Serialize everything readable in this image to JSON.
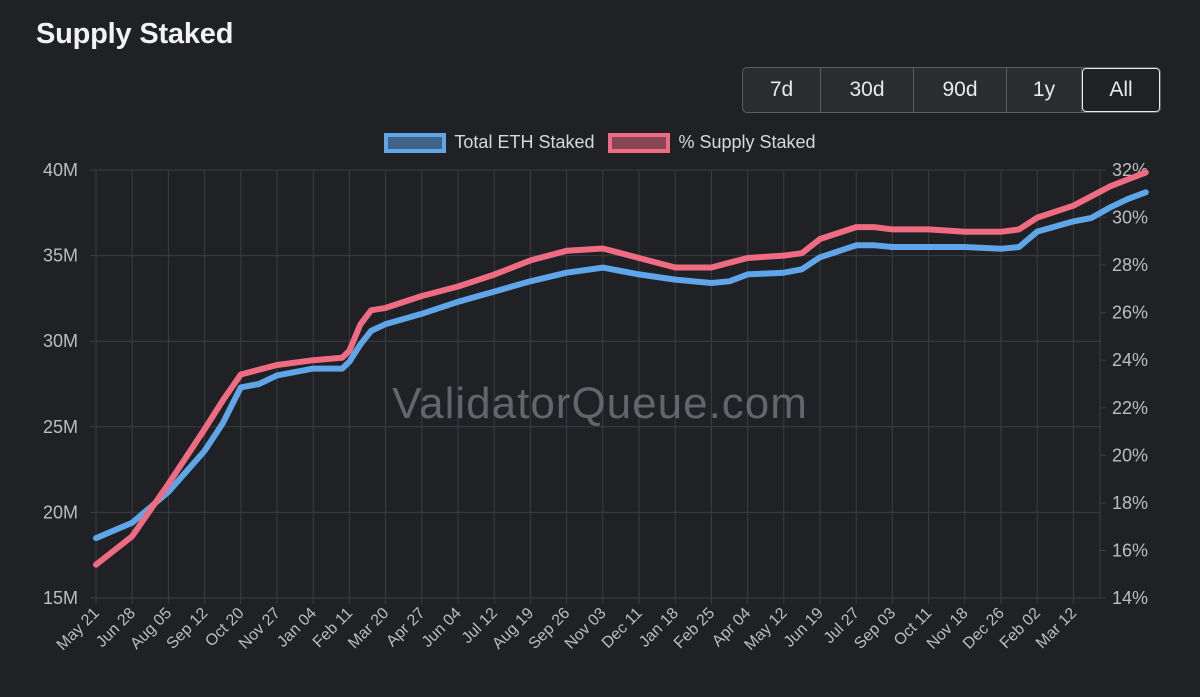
{
  "title": "Supply Staked",
  "ranges": [
    {
      "label": "7d",
      "active": false
    },
    {
      "label": "30d",
      "active": false
    },
    {
      "label": "90d",
      "active": false
    },
    {
      "label": "1y",
      "active": false
    },
    {
      "label": "All",
      "active": true
    }
  ],
  "watermark": "ValidatorQueue.com",
  "colors": {
    "background": "#1f2124",
    "grid": "#3a3d42",
    "series_eth": "#5ea6e8",
    "series_pct": "#ee6b82"
  },
  "chart_data": {
    "type": "line",
    "title": "",
    "legend": [
      "Total ETH Staked",
      "% Supply Staked"
    ],
    "legend_position": "top-center",
    "grid": true,
    "x_ticks": [
      "May 21",
      "Jun 28",
      "Aug 05",
      "Sep 12",
      "Oct 20",
      "Nov 27",
      "Jan 04",
      "Feb 11",
      "Mar 20",
      "Apr 27",
      "Jun 04",
      "Jul 12",
      "Aug 19",
      "Sep 26",
      "Nov 03",
      "Dec 11",
      "Jan 18",
      "Feb 25",
      "Apr 04",
      "May 12",
      "Jun 19",
      "Jul 27",
      "Sep 03",
      "Oct 11",
      "Nov 18",
      "Dec 26",
      "Feb 02",
      "Mar 12"
    ],
    "y_left": {
      "ticks": [
        "15M",
        "20M",
        "25M",
        "30M",
        "35M",
        "40M"
      ],
      "range": [
        15000000,
        40000000
      ]
    },
    "y_right": {
      "ticks": [
        "14%",
        "16%",
        "18%",
        "20%",
        "22%",
        "24%",
        "26%",
        "28%",
        "30%",
        "32%"
      ],
      "range": [
        14,
        32
      ]
    },
    "x_index_range": [
      0,
      29.6
    ],
    "series": [
      {
        "name": "Total ETH Staked",
        "axis": "left",
        "points": [
          [
            0,
            18.5
          ],
          [
            1,
            19.4
          ],
          [
            2,
            21.2
          ],
          [
            3,
            23.6
          ],
          [
            3.5,
            25.2
          ],
          [
            4,
            27.3
          ],
          [
            4.5,
            27.5
          ],
          [
            5,
            28.0
          ],
          [
            6,
            28.4
          ],
          [
            6.8,
            28.4
          ],
          [
            7,
            28.8
          ],
          [
            7.3,
            29.8
          ],
          [
            7.6,
            30.6
          ],
          [
            8,
            31.0
          ],
          [
            9,
            31.6
          ],
          [
            10,
            32.3
          ],
          [
            11,
            32.9
          ],
          [
            12,
            33.5
          ],
          [
            13,
            34.0
          ],
          [
            14,
            34.3
          ],
          [
            14.5,
            34.1
          ],
          [
            15,
            33.9
          ],
          [
            16,
            33.6
          ],
          [
            17,
            33.4
          ],
          [
            17.5,
            33.5
          ],
          [
            18,
            33.9
          ],
          [
            19,
            34.0
          ],
          [
            19.5,
            34.2
          ],
          [
            20,
            34.9
          ],
          [
            21,
            35.6
          ],
          [
            21.5,
            35.6
          ],
          [
            22,
            35.5
          ],
          [
            23,
            35.5
          ],
          [
            24,
            35.5
          ],
          [
            25,
            35.4
          ],
          [
            25.5,
            35.5
          ],
          [
            26,
            36.4
          ],
          [
            27,
            37.0
          ],
          [
            27.5,
            37.2
          ],
          [
            28,
            37.8
          ],
          [
            28.5,
            38.3
          ],
          [
            29,
            38.7
          ]
        ]
      },
      {
        "name": "% Supply Staked",
        "axis": "right",
        "points": [
          [
            0,
            15.4
          ],
          [
            1,
            16.6
          ],
          [
            2,
            18.8
          ],
          [
            3,
            21.1
          ],
          [
            3.5,
            22.3
          ],
          [
            4,
            23.4
          ],
          [
            4.5,
            23.6
          ],
          [
            5,
            23.8
          ],
          [
            6,
            24.0
          ],
          [
            6.8,
            24.1
          ],
          [
            7,
            24.4
          ],
          [
            7.3,
            25.5
          ],
          [
            7.6,
            26.1
          ],
          [
            8,
            26.2
          ],
          [
            9,
            26.7
          ],
          [
            10,
            27.1
          ],
          [
            11,
            27.6
          ],
          [
            12,
            28.2
          ],
          [
            13,
            28.6
          ],
          [
            14,
            28.7
          ],
          [
            14.5,
            28.5
          ],
          [
            15,
            28.3
          ],
          [
            16,
            27.9
          ],
          [
            17,
            27.9
          ],
          [
            17.5,
            28.1
          ],
          [
            18,
            28.3
          ],
          [
            19,
            28.4
          ],
          [
            19.5,
            28.5
          ],
          [
            20,
            29.1
          ],
          [
            21,
            29.6
          ],
          [
            21.5,
            29.6
          ],
          [
            22,
            29.5
          ],
          [
            23,
            29.5
          ],
          [
            24,
            29.4
          ],
          [
            25,
            29.4
          ],
          [
            25.5,
            29.5
          ],
          [
            26,
            30.0
          ],
          [
            27,
            30.5
          ],
          [
            27.5,
            30.9
          ],
          [
            28,
            31.3
          ],
          [
            28.5,
            31.6
          ],
          [
            29,
            31.9
          ]
        ]
      }
    ]
  }
}
